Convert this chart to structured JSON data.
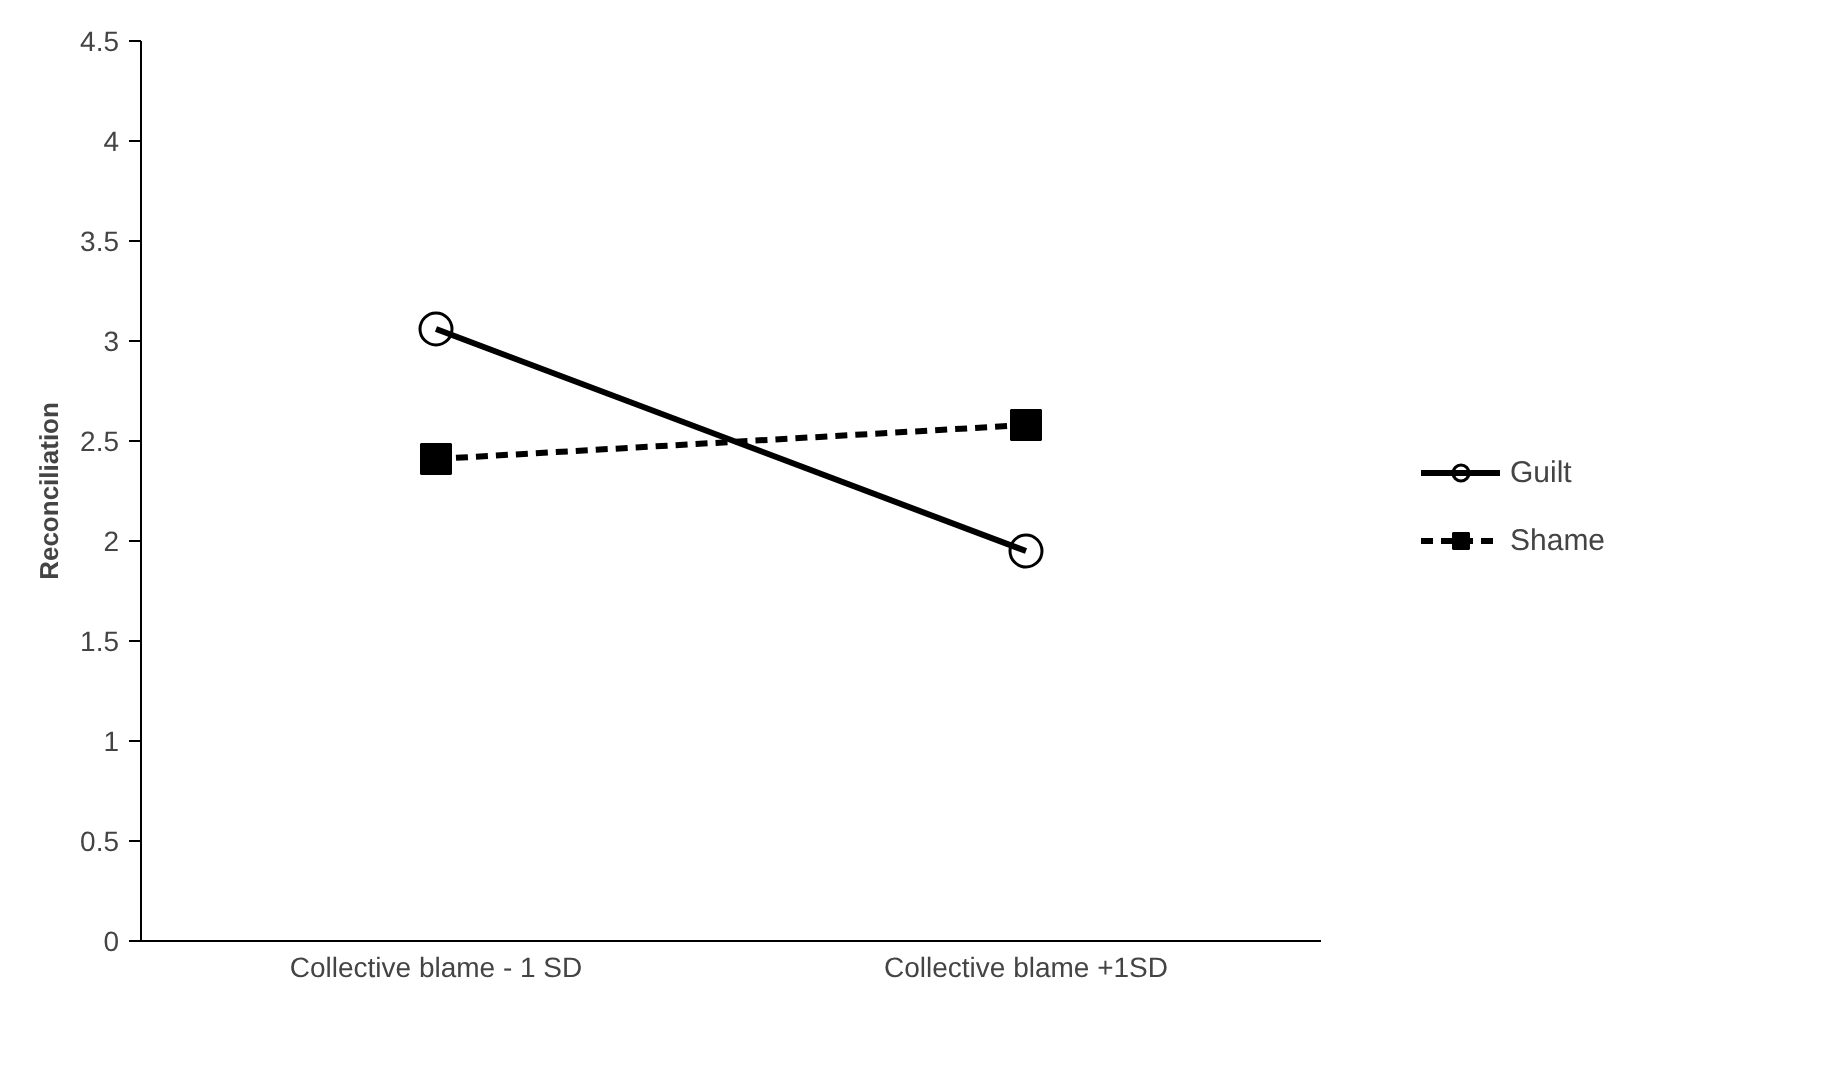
{
  "chart_data": {
    "type": "line",
    "ylabel": "Reconciliation",
    "categories": [
      "Collective blame - 1 SD",
      "Collective blame +1SD"
    ],
    "series": [
      {
        "name": "Guilt",
        "color": "#000000",
        "values": [
          3.06,
          1.95
        ],
        "marker": "circle",
        "line_style": "solid"
      },
      {
        "name": "Shame",
        "color": "#000000",
        "values": [
          2.41,
          2.58
        ],
        "marker": "square",
        "line_style": "dashed"
      }
    ],
    "ylim": [
      0,
      4.5
    ],
    "yticks": [
      0,
      0.5,
      1,
      1.5,
      2,
      2.5,
      3,
      3.5,
      4,
      4.5
    ],
    "grid": false,
    "legend": "right"
  }
}
